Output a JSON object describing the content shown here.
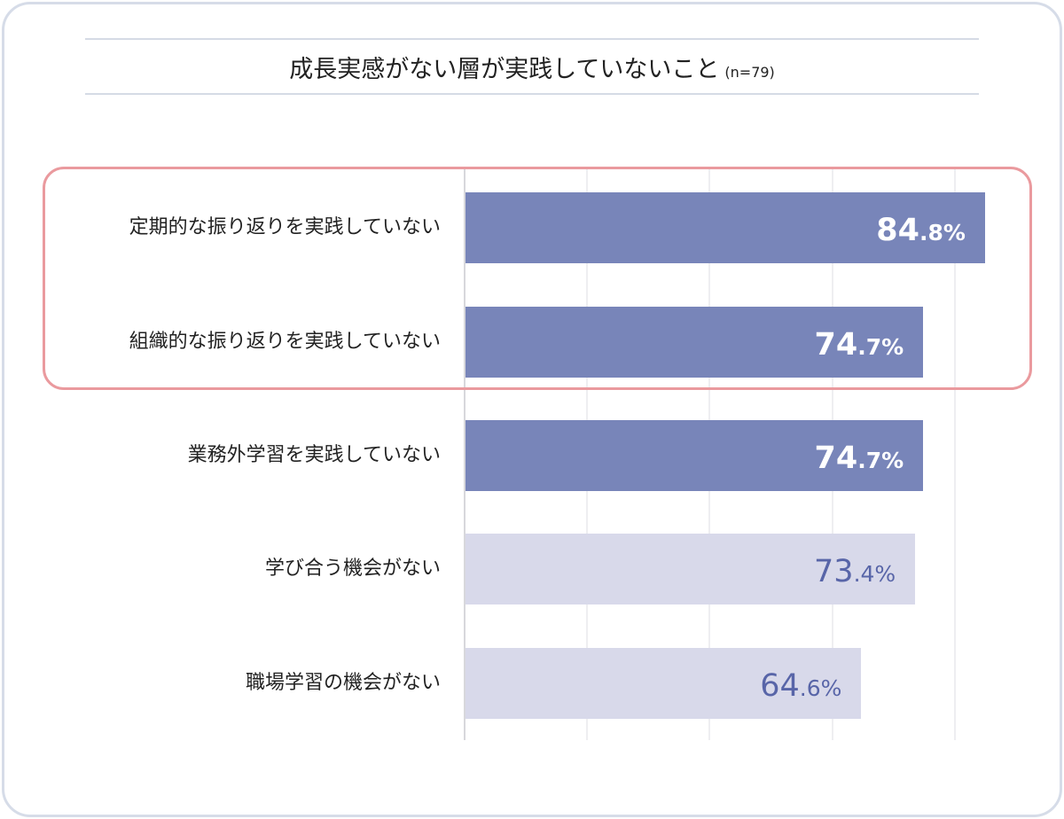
{
  "chart_data": {
    "type": "bar",
    "orientation": "horizontal",
    "title": "成長実感がない層が実践していないこと",
    "subtitle": "(n=79)",
    "xlabel": "",
    "ylabel": "",
    "xlim": [
      0,
      85
    ],
    "grid": true,
    "gridlines": [
      20,
      40,
      60,
      80
    ],
    "categories": [
      "定期的な振り返りを実践していない",
      "組織的な振り返りを実践していない",
      "業務外学習を実践していない",
      "学び合う機会がない",
      "職場学習の機会がない"
    ],
    "values": [
      84.8,
      74.7,
      74.7,
      73.4,
      64.6
    ],
    "value_labels": [
      "84.8%",
      "74.7%",
      "74.7%",
      "73.4%",
      "64.6%"
    ],
    "emphasized": [
      true,
      true,
      true,
      false,
      false
    ],
    "highlighted_group": [
      0,
      1
    ]
  },
  "colors": {
    "dark_bar": "#7885b9",
    "light_bar": "#d8d9ea",
    "dark_text": "#ffffff",
    "light_text": "#5865a8",
    "highlight": "#ea9a9e"
  }
}
